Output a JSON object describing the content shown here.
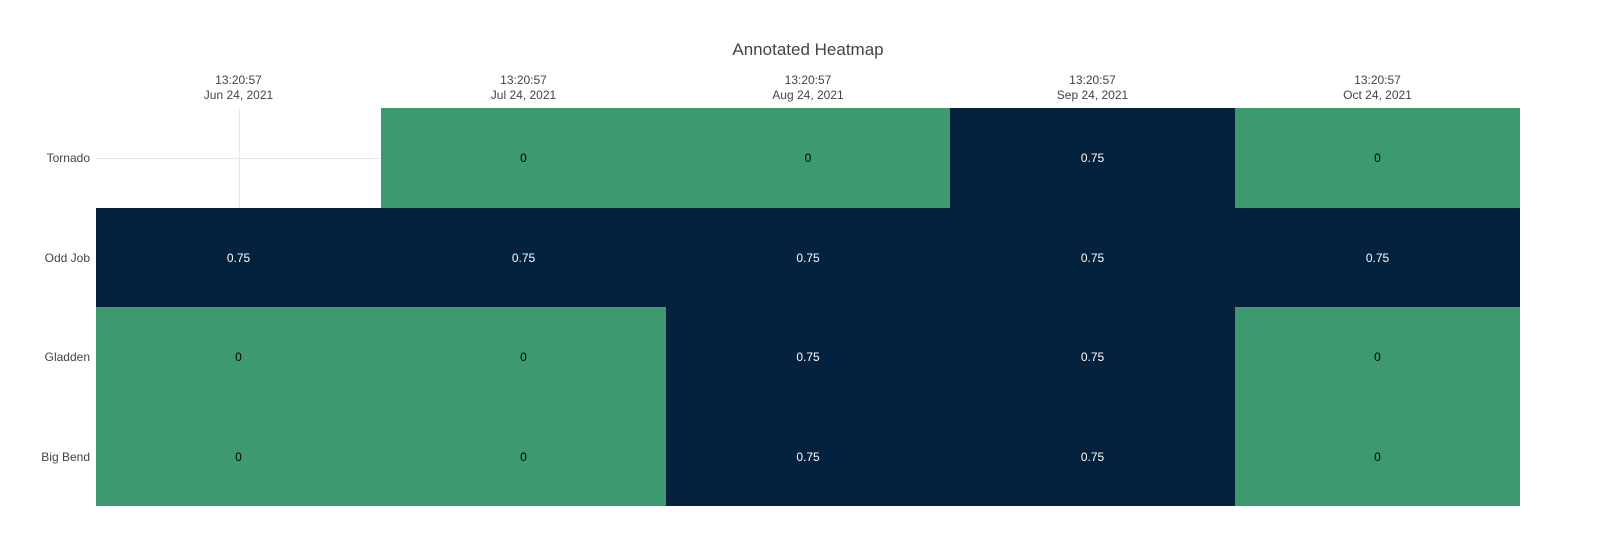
{
  "title": "Annotated Heatmap",
  "colors": {
    "background": "#ffffff",
    "low": "#3D9970",
    "high": "#04213D",
    "annotation_on_low": "#000000",
    "annotation_on_high": "#ffffff",
    "tick_label": "#444444",
    "title_color": "#444444",
    "gridline": "#e8e8e8"
  },
  "chart_data": {
    "type": "heatmap",
    "title": "Annotated Heatmap",
    "x_labels": [
      [
        "13:20:57",
        "Jun 24, 2021"
      ],
      [
        "13:20:57",
        "Jul 24, 2021"
      ],
      [
        "13:20:57",
        "Aug 24, 2021"
      ],
      [
        "13:20:57",
        "Sep 24, 2021"
      ],
      [
        "13:20:57",
        "Oct 24, 2021"
      ]
    ],
    "y_labels": [
      "Tornado",
      "Odd Job",
      "Gladden",
      "Big Bend"
    ],
    "z": [
      [
        null,
        0,
        0,
        0.75,
        0
      ],
      [
        0.75,
        0.75,
        0.75,
        0.75,
        0.75
      ],
      [
        0,
        0,
        0.75,
        0.75,
        0
      ],
      [
        0,
        0,
        0.75,
        0.75,
        0
      ]
    ],
    "annotations": [
      [
        "",
        "0",
        "0",
        "0.75",
        "0"
      ],
      [
        "0.75",
        "0.75",
        "0.75",
        "0.75",
        "0.75"
      ],
      [
        "0",
        "0",
        "0.75",
        "0.75",
        "0"
      ],
      [
        "0",
        "0",
        "0.75",
        "0.75",
        "0"
      ]
    ],
    "zmin": 0,
    "zmax": 0.75,
    "colorscale": [
      [
        "0",
        "#3D9970"
      ],
      [
        "1",
        "#04213D"
      ]
    ],
    "legend": "none",
    "grid": true,
    "missing_cell_background": "#ffffff"
  }
}
